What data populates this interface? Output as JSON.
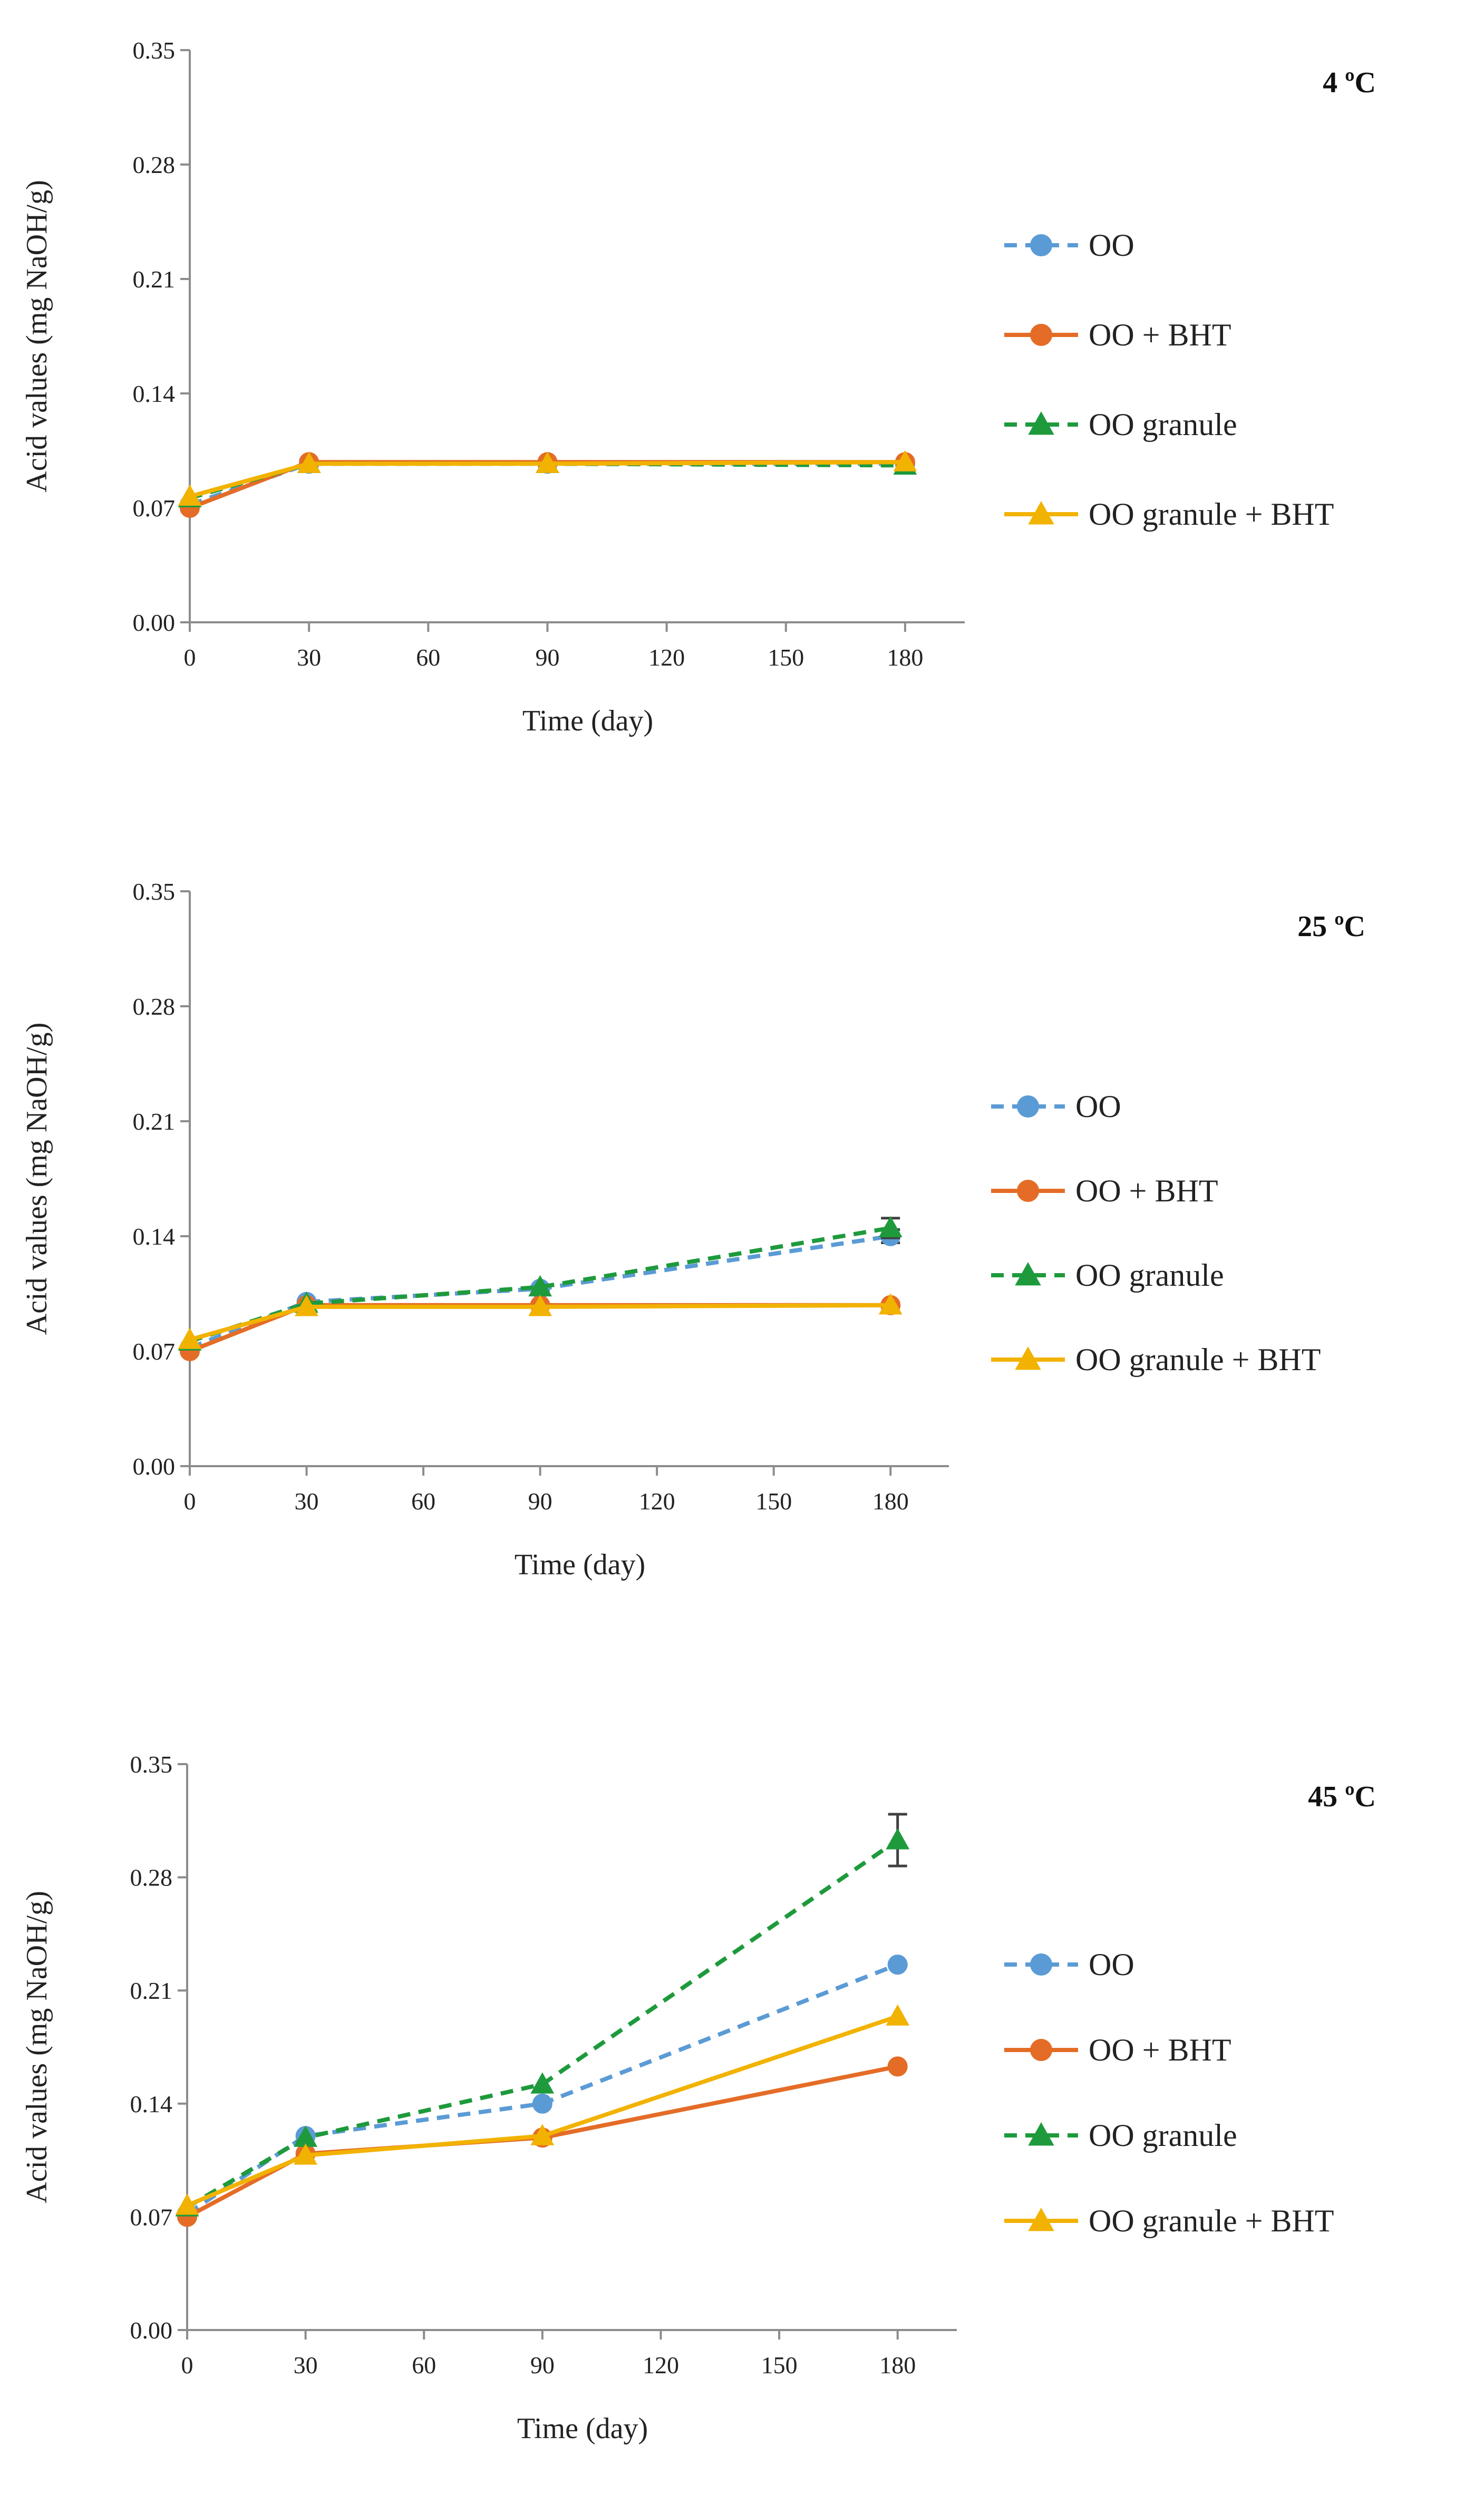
{
  "figure": {
    "colors": {
      "OO": "#5b9bd5",
      "OO + BHT": "#e46c26",
      "OO granule": "#1e9a3c",
      "OO granule + BHT": "#f2b200",
      "axis": "#8c8c8c",
      "errorbar": "#404040"
    }
  },
  "chart_data": [
    {
      "type": "line",
      "panel_label": "4 ºC",
      "xlabel": "Time (day)",
      "ylabel": "Acid values (mg NaOH/g)",
      "x_ticks": [
        "0",
        "30",
        "60",
        "90",
        "120",
        "150",
        "180"
      ],
      "y_ticks": [
        "0.00",
        "0.07",
        "0.14",
        "0.21",
        "0.28",
        "0.35"
      ],
      "xlim": [
        0,
        195
      ],
      "ylim": [
        0,
        0.35
      ],
      "x": [
        0,
        30,
        90,
        180
      ],
      "series": [
        {
          "name": "OO",
          "style": "dashed",
          "marker": "circle",
          "values": [
            0.072,
            0.097,
            0.097,
            0.097
          ],
          "errors": [
            0,
            0,
            0,
            0
          ]
        },
        {
          "name": "OO + BHT",
          "style": "solid",
          "marker": "circle",
          "values": [
            0.07,
            0.098,
            0.098,
            0.098
          ],
          "errors": [
            0,
            0,
            0,
            0
          ]
        },
        {
          "name": "OO granule",
          "style": "dashed",
          "marker": "triangle",
          "values": [
            0.076,
            0.097,
            0.097,
            0.096
          ],
          "errors": [
            0,
            0,
            0,
            0
          ]
        },
        {
          "name": "OO granule + BHT",
          "style": "solid",
          "marker": "triangle",
          "values": [
            0.077,
            0.097,
            0.097,
            0.098
          ],
          "errors": [
            0,
            0,
            0,
            0
          ]
        }
      ]
    },
    {
      "type": "line",
      "panel_label": "25 ºC",
      "xlabel": "Time (day)",
      "ylabel": "Acid values (mg NaOH/g)",
      "x_ticks": [
        "0",
        "30",
        "60",
        "90",
        "120",
        "150",
        "180"
      ],
      "y_ticks": [
        "0.00",
        "0.07",
        "0.14",
        "0.21",
        "0.28",
        "0.35"
      ],
      "xlim": [
        0,
        195
      ],
      "ylim": [
        0,
        0.35
      ],
      "x": [
        0,
        30,
        90,
        180
      ],
      "series": [
        {
          "name": "OO",
          "style": "dashed",
          "marker": "circle",
          "values": [
            0.072,
            0.1,
            0.108,
            0.14
          ],
          "errors": [
            0,
            0,
            0,
            0.004
          ]
        },
        {
          "name": "OO + BHT",
          "style": "solid",
          "marker": "circle",
          "values": [
            0.07,
            0.098,
            0.098,
            0.098
          ],
          "errors": [
            0,
            0,
            0,
            0
          ]
        },
        {
          "name": "OO granule",
          "style": "dashed",
          "marker": "triangle",
          "values": [
            0.076,
            0.099,
            0.109,
            0.145
          ],
          "errors": [
            0,
            0,
            0,
            0.006
          ]
        },
        {
          "name": "OO granule + BHT",
          "style": "solid",
          "marker": "triangle",
          "values": [
            0.077,
            0.097,
            0.097,
            0.098
          ],
          "errors": [
            0,
            0,
            0,
            0
          ]
        }
      ]
    },
    {
      "type": "line",
      "panel_label": "45 ºC",
      "xlabel": "Time (day)",
      "ylabel": "Acid values (mg NaOH/g)",
      "x_ticks": [
        "0",
        "30",
        "60",
        "90",
        "120",
        "150",
        "180"
      ],
      "y_ticks": [
        "0.00",
        "0.07",
        "0.14",
        "0.21",
        "0.28",
        "0.35"
      ],
      "xlim": [
        0,
        195
      ],
      "ylim": [
        0,
        0.35
      ],
      "x": [
        0,
        30,
        90,
        180
      ],
      "series": [
        {
          "name": "OO",
          "style": "dashed",
          "marker": "circle",
          "values": [
            0.072,
            0.12,
            0.14,
            0.226
          ],
          "errors": [
            0,
            0,
            0,
            0
          ]
        },
        {
          "name": "OO + BHT",
          "style": "solid",
          "marker": "circle",
          "values": [
            0.07,
            0.109,
            0.119,
            0.163
          ],
          "errors": [
            0,
            0,
            0,
            0
          ]
        },
        {
          "name": "OO granule",
          "style": "dashed",
          "marker": "triangle",
          "values": [
            0.076,
            0.119,
            0.152,
            0.303
          ],
          "errors": [
            0,
            0,
            0,
            0.016
          ]
        },
        {
          "name": "OO granule + BHT",
          "style": "solid",
          "marker": "triangle",
          "values": [
            0.077,
            0.108,
            0.12,
            0.194
          ],
          "errors": [
            0,
            0,
            0,
            0
          ]
        }
      ]
    }
  ]
}
